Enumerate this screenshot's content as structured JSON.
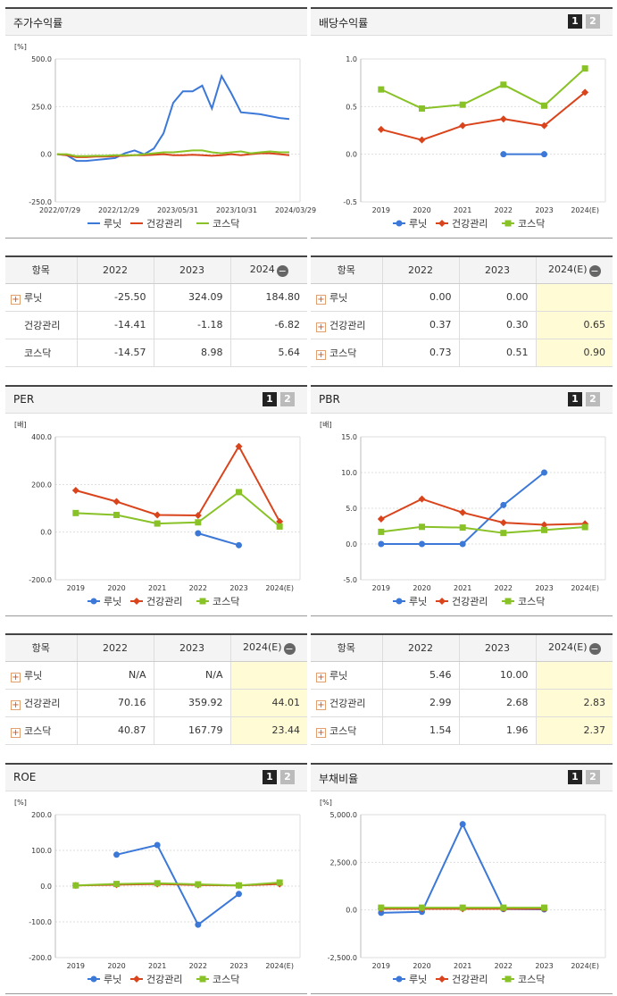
{
  "colors": {
    "lunit": "#3b78d8",
    "health": "#d9441c",
    "kosdaq": "#88c226"
  },
  "legend": [
    "루닛",
    "건강관리",
    "코스닥"
  ],
  "charts": {
    "stock": {
      "title": "주가수익률",
      "unit": "[%]",
      "pages": [],
      "yticks": [
        "500.0",
        "250.0",
        "0.0",
        "-250.0"
      ],
      "ymin": -250,
      "ymax": 500,
      "xticks": [
        "2022/07/29",
        "2022/12/29",
        "2023/05/31",
        "2023/10/31",
        "2024/03/29"
      ],
      "series": [
        {
          "key": "lunit",
          "marker": "none",
          "values": [
            0,
            -5,
            -35,
            -35,
            -30,
            -25,
            -20,
            5,
            20,
            0,
            30,
            110,
            270,
            330,
            330,
            360,
            240,
            410,
            320,
            220,
            215,
            210,
            200,
            190,
            185
          ]
        },
        {
          "key": "health",
          "marker": "none",
          "values": [
            0,
            -5,
            -15,
            -15,
            -12,
            -12,
            -10,
            -8,
            -5,
            -5,
            -3,
            0,
            -5,
            -5,
            -3,
            -5,
            -8,
            -5,
            0,
            -5,
            0,
            5,
            5,
            0,
            -5
          ]
        },
        {
          "key": "kosdaq",
          "marker": "none",
          "values": [
            0,
            0,
            -10,
            -10,
            -8,
            -8,
            -5,
            -5,
            -5,
            0,
            5,
            10,
            10,
            15,
            20,
            20,
            10,
            5,
            10,
            15,
            5,
            10,
            15,
            10,
            10
          ]
        }
      ]
    },
    "dividend": {
      "title": "배당수익률",
      "unit": "",
      "pages": [
        "1",
        "2"
      ],
      "yticks": [
        "1.0",
        "0.5",
        "0.0",
        "-0.5"
      ],
      "ymin": -0.5,
      "ymax": 1.0,
      "xticks": [
        "2019",
        "2020",
        "2021",
        "2022",
        "2023",
        "2024(E)"
      ],
      "series": [
        {
          "key": "lunit",
          "marker": "circle",
          "values": [
            null,
            null,
            null,
            0.0,
            0.0,
            null
          ]
        },
        {
          "key": "health",
          "marker": "diamond",
          "values": [
            0.26,
            0.15,
            0.3,
            0.37,
            0.3,
            0.65
          ]
        },
        {
          "key": "kosdaq",
          "marker": "square",
          "values": [
            0.68,
            0.48,
            0.52,
            0.73,
            0.51,
            0.9
          ]
        }
      ]
    },
    "per": {
      "title": "PER",
      "unit": "[배]",
      "pages": [
        "1",
        "2"
      ],
      "yticks": [
        "400.0",
        "200.0",
        "0.0",
        "-200.0"
      ],
      "ymin": -200,
      "ymax": 400,
      "xticks": [
        "2019",
        "2020",
        "2021",
        "2022",
        "2023",
        "2024(E)"
      ],
      "series": [
        {
          "key": "lunit",
          "marker": "circle",
          "values": [
            null,
            null,
            null,
            -5,
            -55,
            null
          ]
        },
        {
          "key": "health",
          "marker": "diamond",
          "values": [
            175,
            128,
            72,
            70.16,
            359.92,
            44.01
          ]
        },
        {
          "key": "kosdaq",
          "marker": "square",
          "values": [
            80,
            72,
            36,
            40.87,
            167.79,
            23.44
          ]
        }
      ]
    },
    "pbr": {
      "title": "PBR",
      "unit": "[배]",
      "pages": [
        "1",
        "2"
      ],
      "yticks": [
        "15.0",
        "10.0",
        "5.0",
        "0.0",
        "-5.0"
      ],
      "ymin": -5,
      "ymax": 15,
      "xticks": [
        "2019",
        "2020",
        "2021",
        "2022",
        "2023",
        "2024(E)"
      ],
      "series": [
        {
          "key": "lunit",
          "marker": "circle",
          "values": [
            0.0,
            0.0,
            0.0,
            5.46,
            10.0,
            null
          ]
        },
        {
          "key": "health",
          "marker": "diamond",
          "values": [
            3.5,
            6.3,
            4.4,
            2.99,
            2.68,
            2.83
          ]
        },
        {
          "key": "kosdaq",
          "marker": "square",
          "values": [
            1.7,
            2.4,
            2.3,
            1.54,
            1.96,
            2.37
          ]
        }
      ]
    },
    "roe": {
      "title": "ROE",
      "unit": "[%]",
      "pages": [
        "1",
        "2"
      ],
      "yticks": [
        "200.0",
        "100.0",
        "0.0",
        "-100.0",
        "-200.0"
      ],
      "ymin": -200,
      "ymax": 200,
      "xticks": [
        "2019",
        "2020",
        "2021",
        "2022",
        "2023",
        "2024(E)"
      ],
      "series": [
        {
          "key": "lunit",
          "marker": "circle",
          "values": [
            null,
            88,
            115,
            -108,
            -22,
            null
          ]
        },
        {
          "key": "health",
          "marker": "diamond",
          "values": [
            2,
            4,
            6,
            3,
            2,
            6
          ]
        },
        {
          "key": "kosdaq",
          "marker": "square",
          "values": [
            2,
            6,
            8,
            5,
            2,
            10
          ]
        }
      ]
    },
    "debt": {
      "title": "부채비율",
      "unit": "[%]",
      "pages": [
        "1",
        "2"
      ],
      "yticks": [
        "5,000.0",
        "2,500.0",
        "0.0",
        "-2,500.0"
      ],
      "ymin": -2500,
      "ymax": 5000,
      "xticks": [
        "2019",
        "2020",
        "2021",
        "2022",
        "2023",
        "2024(E)"
      ],
      "series": [
        {
          "key": "lunit",
          "marker": "circle",
          "values": [
            -150,
            -100,
            4500,
            50,
            30,
            null
          ]
        },
        {
          "key": "health",
          "marker": "diamond",
          "values": [
            60,
            60,
            60,
            60,
            60,
            null
          ]
        },
        {
          "key": "kosdaq",
          "marker": "square",
          "values": [
            120,
            120,
            120,
            120,
            120,
            null
          ]
        }
      ]
    }
  },
  "tables": {
    "stock": {
      "headers": [
        "항목",
        "2022",
        "2023",
        "2024"
      ],
      "minus_header": 3,
      "highlight_col": -1,
      "rows": [
        {
          "name": "루닛",
          "plus": true,
          "values": [
            "-25.50",
            "324.09",
            "184.80"
          ]
        },
        {
          "name": "건강관리",
          "plus": false,
          "values": [
            "-14.41",
            "-1.18",
            "-6.82"
          ]
        },
        {
          "name": "코스닥",
          "plus": false,
          "values": [
            "-14.57",
            "8.98",
            "5.64"
          ]
        }
      ]
    },
    "dividend": {
      "headers": [
        "항목",
        "2022",
        "2023",
        "2024(E)"
      ],
      "minus_header": 3,
      "highlight_col": 3,
      "rows": [
        {
          "name": "루닛",
          "plus": true,
          "values": [
            "0.00",
            "0.00",
            ""
          ]
        },
        {
          "name": "건강관리",
          "plus": true,
          "values": [
            "0.37",
            "0.30",
            "0.65"
          ]
        },
        {
          "name": "코스닥",
          "plus": true,
          "values": [
            "0.73",
            "0.51",
            "0.90"
          ]
        }
      ]
    },
    "per": {
      "headers": [
        "항목",
        "2022",
        "2023",
        "2024(E)"
      ],
      "minus_header": 3,
      "highlight_col": 3,
      "rows": [
        {
          "name": "루닛",
          "plus": true,
          "values": [
            "N/A",
            "N/A",
            ""
          ]
        },
        {
          "name": "건강관리",
          "plus": true,
          "values": [
            "70.16",
            "359.92",
            "44.01"
          ]
        },
        {
          "name": "코스닥",
          "plus": true,
          "values": [
            "40.87",
            "167.79",
            "23.44"
          ]
        }
      ]
    },
    "pbr": {
      "headers": [
        "항목",
        "2022",
        "2023",
        "2024(E)"
      ],
      "minus_header": 3,
      "highlight_col": 3,
      "rows": [
        {
          "name": "루닛",
          "plus": true,
          "values": [
            "5.46",
            "10.00",
            ""
          ]
        },
        {
          "name": "건강관리",
          "plus": true,
          "values": [
            "2.99",
            "2.68",
            "2.83"
          ]
        },
        {
          "name": "코스닥",
          "plus": true,
          "values": [
            "1.54",
            "1.96",
            "2.37"
          ]
        }
      ]
    }
  },
  "chart_data": [
    {
      "type": "line",
      "title": "주가수익률",
      "ylabel": "[%]",
      "x": [
        "2022/07/29",
        "2022/12/29",
        "2023/05/31",
        "2023/10/31",
        "2024/03/29"
      ],
      "ylim": [
        -250,
        500
      ],
      "series": [
        {
          "name": "루닛",
          "values": [
            0,
            -25.5,
            324.09,
            240,
            184.8
          ]
        },
        {
          "name": "건강관리",
          "values": [
            0,
            -14.41,
            -1.18,
            -8,
            -6.82
          ]
        },
        {
          "name": "코스닥",
          "values": [
            0,
            -14.57,
            8.98,
            5,
            5.64
          ]
        }
      ]
    },
    {
      "type": "line",
      "title": "배당수익률",
      "categories": [
        "2019",
        "2020",
        "2021",
        "2022",
        "2023",
        "2024(E)"
      ],
      "ylim": [
        -0.5,
        1.0
      ],
      "series": [
        {
          "name": "루닛",
          "values": [
            null,
            null,
            null,
            0.0,
            0.0,
            null
          ]
        },
        {
          "name": "건강관리",
          "values": [
            0.26,
            0.15,
            0.3,
            0.37,
            0.3,
            0.65
          ]
        },
        {
          "name": "코스닥",
          "values": [
            0.68,
            0.48,
            0.52,
            0.73,
            0.51,
            0.9
          ]
        }
      ]
    },
    {
      "type": "line",
      "title": "PER",
      "ylabel": "[배]",
      "categories": [
        "2019",
        "2020",
        "2021",
        "2022",
        "2023",
        "2024(E)"
      ],
      "ylim": [
        -200,
        400
      ],
      "series": [
        {
          "name": "루닛",
          "values": [
            null,
            null,
            null,
            -5,
            -55,
            null
          ]
        },
        {
          "name": "건강관리",
          "values": [
            175,
            128,
            72,
            70.16,
            359.92,
            44.01
          ]
        },
        {
          "name": "코스닥",
          "values": [
            80,
            72,
            36,
            40.87,
            167.79,
            23.44
          ]
        }
      ]
    },
    {
      "type": "line",
      "title": "PBR",
      "ylabel": "[배]",
      "categories": [
        "2019",
        "2020",
        "2021",
        "2022",
        "2023",
        "2024(E)"
      ],
      "ylim": [
        -5,
        15
      ],
      "series": [
        {
          "name": "루닛",
          "values": [
            0,
            0,
            0,
            5.46,
            10.0,
            null
          ]
        },
        {
          "name": "건강관리",
          "values": [
            3.5,
            6.3,
            4.4,
            2.99,
            2.68,
            2.83
          ]
        },
        {
          "name": "코스닥",
          "values": [
            1.7,
            2.4,
            2.3,
            1.54,
            1.96,
            2.37
          ]
        }
      ]
    },
    {
      "type": "line",
      "title": "ROE",
      "ylabel": "[%]",
      "categories": [
        "2019",
        "2020",
        "2021",
        "2022",
        "2023",
        "2024(E)"
      ],
      "ylim": [
        -200,
        200
      ],
      "series": [
        {
          "name": "루닛",
          "values": [
            null,
            88,
            115,
            -108,
            -22,
            null
          ]
        },
        {
          "name": "건강관리",
          "values": [
            2,
            4,
            6,
            3,
            2,
            6
          ]
        },
        {
          "name": "코스닥",
          "values": [
            2,
            6,
            8,
            5,
            2,
            10
          ]
        }
      ]
    },
    {
      "type": "line",
      "title": "부채비율",
      "ylabel": "[%]",
      "categories": [
        "2019",
        "2020",
        "2021",
        "2022",
        "2023",
        "2024(E)"
      ],
      "ylim": [
        -2500,
        5000
      ],
      "series": [
        {
          "name": "루닛",
          "values": [
            -150,
            -100,
            4500,
            50,
            30,
            null
          ]
        },
        {
          "name": "건강관리",
          "values": [
            60,
            60,
            60,
            60,
            60,
            null
          ]
        },
        {
          "name": "코스닥",
          "values": [
            120,
            120,
            120,
            120,
            120,
            null
          ]
        }
      ]
    }
  ]
}
